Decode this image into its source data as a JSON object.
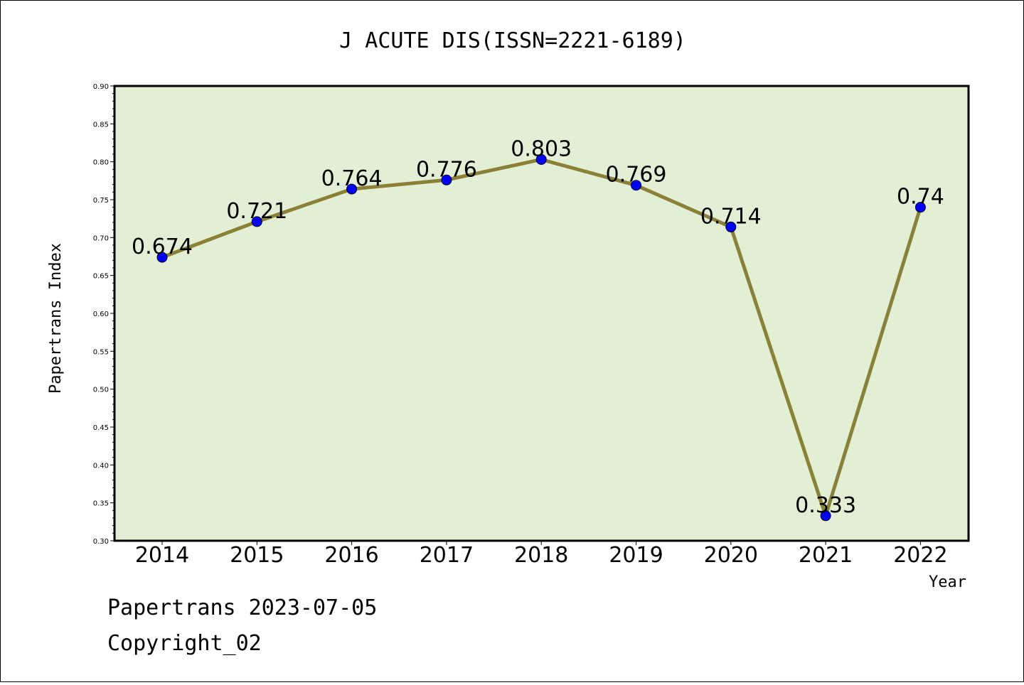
{
  "chart_data": {
    "type": "line",
    "title": "J ACUTE DIS(ISSN=2221-6189)",
    "xlabel": "Year",
    "ylabel": "Papertrans Index",
    "categories": [
      "2014",
      "2015",
      "2016",
      "2017",
      "2018",
      "2019",
      "2020",
      "2021",
      "2022"
    ],
    "series": [
      {
        "values": [
          0.674,
          0.721,
          0.764,
          0.776,
          0.803,
          0.769,
          0.714,
          0.333,
          0.74
        ]
      }
    ],
    "data_labels": [
      "0.674",
      "0.721",
      "0.764",
      "0.776",
      "0.803",
      "0.769",
      "0.714",
      "0.333",
      "0.74"
    ],
    "ylim": [
      0.3,
      0.9
    ],
    "yticks": [
      "0.30",
      "0.35",
      "0.40",
      "0.45",
      "0.50",
      "0.55",
      "0.60",
      "0.65",
      "0.70",
      "0.75",
      "0.80",
      "0.85",
      "0.90"
    ],
    "grid": false,
    "colors": {
      "plot_background": "#e2efd5",
      "line": "#8b8136",
      "marker": "#0000ff"
    }
  },
  "footer": {
    "line1": "Papertrans 2023-07-05",
    "line2": "Copyright_02"
  }
}
